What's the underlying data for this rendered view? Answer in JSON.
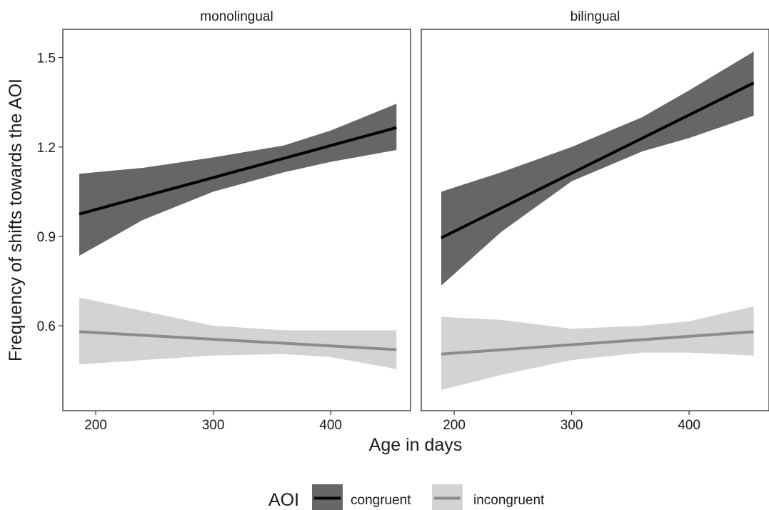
{
  "chart_data": {
    "type": "line",
    "xlabel": "Age in days",
    "ylabel": "Frequency of shifts towards the AOI",
    "xlim": [
      172,
      468
    ],
    "ylim": [
      0.315,
      1.595
    ],
    "xticks": [
      200,
      300,
      400
    ],
    "yticks": [
      0.6,
      0.9,
      1.2,
      1.5
    ],
    "ytick_labels": [
      "0.6",
      "0.9",
      "1.2",
      "1.5"
    ],
    "grid": false,
    "legend": {
      "title": "AOI",
      "position": "bottom",
      "entries": [
        "congruent",
        "incongruent"
      ]
    },
    "colors": {
      "congruent_line": "#000000",
      "congruent_band": "#666666",
      "incongruent_line": "#8c8c8c",
      "incongruent_band": "#d3d3d3"
    },
    "panels": [
      {
        "title": "monolingual",
        "series": [
          {
            "name": "congruent",
            "x": [
              186,
              456
            ],
            "y": [
              0.975,
              1.265
            ],
            "band_x": [
              186,
              240,
              300,
              360,
              400,
              456
            ],
            "band_lower": [
              0.835,
              0.955,
              1.05,
              1.115,
              1.15,
              1.19
            ],
            "band_upper": [
              1.11,
              1.13,
              1.165,
              1.205,
              1.255,
              1.345
            ]
          },
          {
            "name": "incongruent",
            "x": [
              186,
              456
            ],
            "y": [
              0.58,
              0.52
            ],
            "band_x": [
              186,
              240,
              300,
              360,
              400,
              456
            ],
            "band_lower": [
              0.47,
              0.485,
              0.5,
              0.505,
              0.495,
              0.455
            ],
            "band_upper": [
              0.695,
              0.65,
              0.6,
              0.585,
              0.585,
              0.585
            ]
          }
        ]
      },
      {
        "title": "bilingual",
        "series": [
          {
            "name": "congruent",
            "x": [
              189,
              455
            ],
            "y": [
              0.895,
              1.415
            ],
            "band_x": [
              189,
              240,
              300,
              360,
              400,
              455
            ],
            "band_lower": [
              0.735,
              0.915,
              1.085,
              1.185,
              1.23,
              1.305
            ],
            "band_upper": [
              1.05,
              1.115,
              1.2,
              1.3,
              1.39,
              1.52
            ]
          },
          {
            "name": "incongruent",
            "x": [
              189,
              455
            ],
            "y": [
              0.505,
              0.58
            ],
            "band_x": [
              189,
              240,
              300,
              360,
              400,
              455
            ],
            "band_lower": [
              0.385,
              0.435,
              0.485,
              0.51,
              0.51,
              0.5
            ],
            "band_upper": [
              0.63,
              0.62,
              0.59,
              0.6,
              0.615,
              0.665
            ]
          }
        ]
      }
    ]
  }
}
